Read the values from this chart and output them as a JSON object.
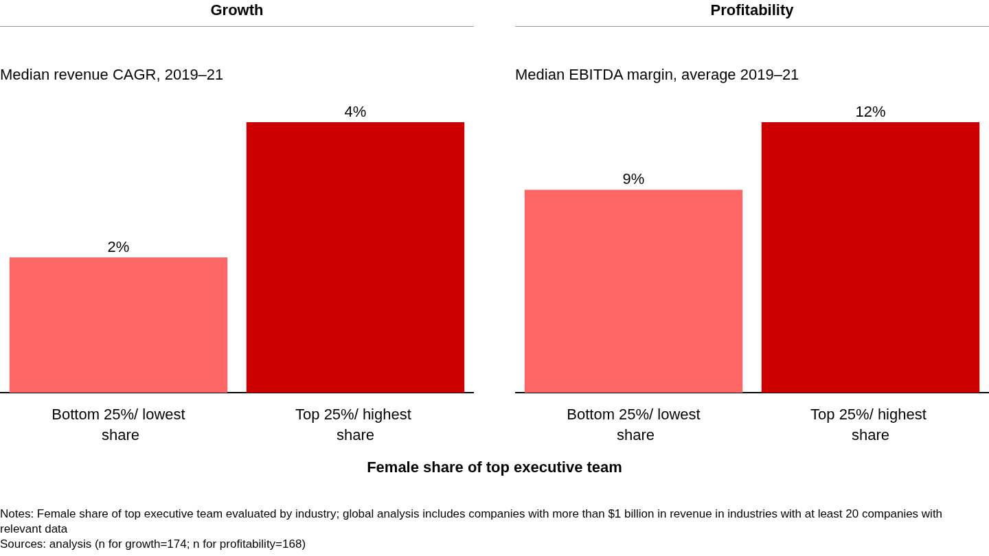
{
  "chart_data": [
    {
      "type": "bar",
      "title": "Growth",
      "subtitle": "Median revenue CAGR, 2019–21",
      "categories": [
        "Bottom 25%/ lowest share",
        "Top 25%/ highest share"
      ],
      "values": [
        2,
        4
      ],
      "colors": [
        "#ff6666",
        "#cc0000"
      ],
      "value_labels": [
        "2%",
        "4%"
      ],
      "xlabel": "Female share of top executive team",
      "annotations": [
        "Notes: Female share of top executive team evaluated by industry; global analysis includes companies with more than $1 billion in revenue in industries with at least 20 companies with relevant data",
        "Sources: analysis (n for growth=174; n for profitability=168)"
      ]
    },
    {
      "type": "bar",
      "title": "Profitability",
      "subtitle": "Median EBITDA margin, average 2019–21",
      "categories": [
        "Bottom 25%/ lowest share",
        "Top 25%/ highest share"
      ],
      "values": [
        9,
        12
      ],
      "colors": [
        "#ff6666",
        "#cc0000"
      ],
      "value_labels": [
        "9%",
        "12%"
      ]
    }
  ]
}
